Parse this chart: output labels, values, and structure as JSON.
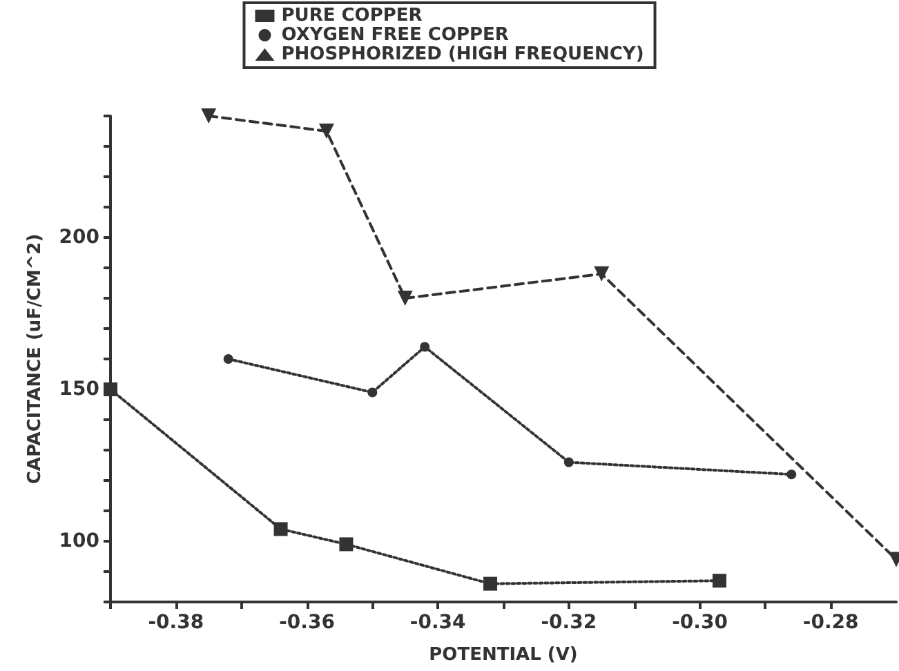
{
  "chart_data": {
    "type": "line",
    "xlabel": "POTENTIAL (V)",
    "ylabel": "CAPACITANCE (uF/CM^2)",
    "legend": "top",
    "grid": false,
    "xlim": [
      -0.39,
      -0.27
    ],
    "xticks": [
      {
        "value": -0.39,
        "label": null
      },
      -0.38,
      {
        "value": -0.37,
        "label": null
      },
      -0.36,
      {
        "value": -0.35,
        "label": null
      },
      -0.34,
      {
        "value": -0.33,
        "label": null
      },
      -0.32,
      {
        "value": -0.31,
        "label": null
      },
      {
        "value": -0.3,
        "label": "-0.30"
      },
      {
        "value": -0.29,
        "label": null
      },
      -0.28
    ],
    "ylim": [
      80,
      240
    ],
    "yticks": [
      {
        "value": 80,
        "label": null
      },
      {
        "value": 90,
        "label": null
      },
      100,
      {
        "value": 110,
        "label": null
      },
      {
        "value": 120,
        "label": null
      },
      {
        "value": 130,
        "label": null
      },
      {
        "value": 140,
        "label": null
      },
      150,
      {
        "value": 160,
        "label": null
      },
      {
        "value": 170,
        "label": null
      },
      {
        "value": 180,
        "label": null
      },
      {
        "value": 190,
        "label": null
      },
      200,
      {
        "value": 210,
        "label": null
      },
      {
        "value": 220,
        "label": null
      },
      {
        "value": 230,
        "label": null
      },
      {
        "value": 240,
        "label": null
      }
    ],
    "series": [
      {
        "name": "PURE COPPER",
        "color": "#333333",
        "marker": "square",
        "line_style": "dotted",
        "x": [
          -0.39,
          -0.364,
          -0.354,
          -0.332,
          -0.297
        ],
        "values": [
          150,
          104,
          99,
          86,
          87
        ]
      },
      {
        "name": "OXYGEN FREE COPPER",
        "color": "#333333",
        "marker": "circle",
        "line_style": "dotted",
        "x": [
          -0.372,
          -0.35,
          -0.342,
          -0.32,
          -0.286
        ],
        "values": [
          160,
          149,
          164,
          126,
          122
        ]
      },
      {
        "name": "PHOSPHORIZED (HIGH FREQUENCY)",
        "color": "#333333",
        "marker": "triangle",
        "line_style": "dashed",
        "x": [
          -0.375,
          -0.357,
          -0.345,
          -0.315,
          -0.27
        ],
        "values": [
          240,
          235,
          180,
          188,
          94
        ]
      }
    ]
  }
}
